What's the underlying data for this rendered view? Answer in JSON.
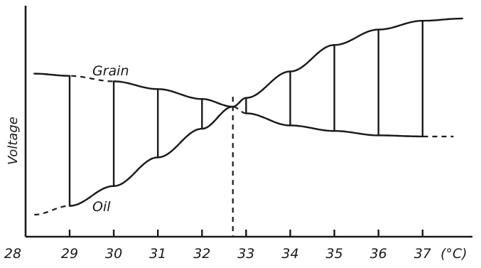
{
  "chart_data": {
    "type": "line",
    "title": "",
    "ylabel": "Voltage",
    "xlabel": "",
    "x_unit": "(°C)",
    "x_ticks": [
      "28",
      "29",
      "30",
      "31",
      "32",
      "33",
      "34",
      "35",
      "36",
      "37"
    ],
    "xlim": [
      28,
      37.9
    ],
    "ylim": [
      0,
      10
    ],
    "grid": false,
    "crossover_x": 32.7,
    "series": [
      {
        "name": "Grain",
        "style": "mixed",
        "points": [
          [
            28.2,
            7.4
          ],
          [
            29,
            7.3
          ],
          [
            30,
            7.05
          ],
          [
            31,
            6.7
          ],
          [
            32,
            6.25
          ],
          [
            32.7,
            5.9
          ],
          [
            33,
            5.6
          ],
          [
            34,
            5.05
          ],
          [
            35,
            4.8
          ],
          [
            36,
            4.6
          ],
          [
            37,
            4.55
          ],
          [
            37.7,
            4.55
          ]
        ]
      },
      {
        "name": "Oil",
        "style": "mixed",
        "points": [
          [
            28.2,
            1.0
          ],
          [
            29,
            1.4
          ],
          [
            30,
            2.3
          ],
          [
            31,
            3.6
          ],
          [
            32,
            4.9
          ],
          [
            32.7,
            5.9
          ],
          [
            33,
            6.3
          ],
          [
            34,
            7.5
          ],
          [
            35,
            8.7
          ],
          [
            36,
            9.4
          ],
          [
            37,
            9.8
          ],
          [
            37.9,
            9.9
          ]
        ]
      }
    ],
    "switching_lines_x": [
      29,
      30,
      31,
      32,
      33,
      34,
      35,
      36,
      37
    ]
  }
}
